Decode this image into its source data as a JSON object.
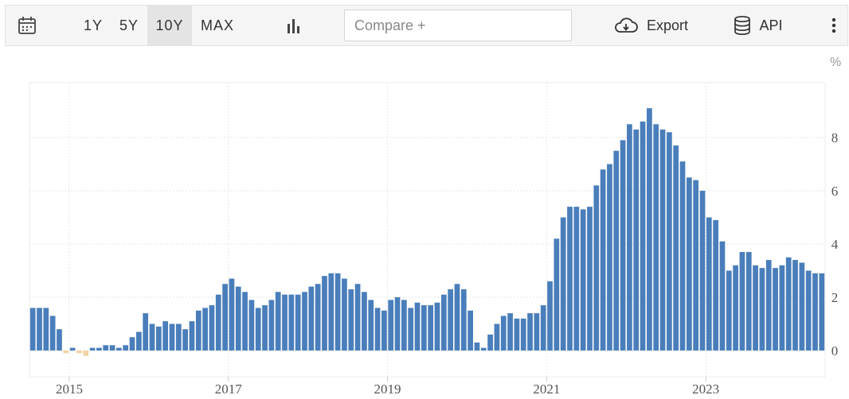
{
  "toolbar": {
    "calendar_icon": "calendar-icon",
    "ranges": [
      "1Y",
      "5Y",
      "10Y",
      "MAX"
    ],
    "active_range": "10Y",
    "chart_type_icon": "bar-chart-icon",
    "compare_placeholder": "Compare +",
    "export_label": "Export",
    "export_icon": "cloud-download-icon",
    "api_label": "API",
    "api_icon": "database-icon",
    "more_icon": "vertical-dots-icon"
  },
  "chart_data": {
    "type": "bar",
    "unit_label": "%",
    "x_tick_labels": [
      "2015",
      "2017",
      "2019",
      "2021",
      "2023"
    ],
    "y_tick_labels": [
      "0",
      "2",
      "4",
      "6",
      "8"
    ],
    "ylim": [
      -0.2,
      10
    ],
    "grid": true,
    "frequency": "monthly",
    "start": "2014-07",
    "end": "2024-06",
    "values": [
      1.6,
      1.6,
      1.6,
      1.3,
      0.8,
      -0.1,
      0.1,
      -0.1,
      -0.2,
      0.1,
      0.1,
      0.2,
      0.2,
      0.1,
      0.2,
      0.5,
      0.7,
      1.4,
      1.0,
      0.9,
      1.1,
      1.0,
      1.0,
      0.8,
      1.1,
      1.5,
      1.6,
      1.7,
      2.1,
      2.5,
      2.7,
      2.4,
      2.2,
      1.9,
      1.6,
      1.7,
      1.9,
      2.2,
      2.1,
      2.1,
      2.1,
      2.2,
      2.4,
      2.5,
      2.8,
      2.9,
      2.9,
      2.7,
      2.3,
      2.5,
      2.2,
      1.9,
      1.6,
      1.5,
      1.9,
      2.0,
      1.9,
      1.6,
      1.8,
      1.7,
      1.7,
      1.8,
      2.1,
      2.3,
      2.5,
      2.3,
      1.5,
      0.3,
      0.1,
      0.6,
      1.0,
      1.3,
      1.4,
      1.2,
      1.2,
      1.4,
      1.4,
      1.7,
      2.6,
      4.2,
      5.0,
      5.4,
      5.4,
      5.3,
      5.4,
      6.2,
      6.8,
      7.0,
      7.5,
      7.9,
      8.5,
      8.3,
      8.6,
      9.1,
      8.5,
      8.3,
      8.2,
      7.7,
      7.1,
      6.5,
      6.4,
      6.0,
      5.0,
      4.9,
      4.1,
      3.0,
      3.2,
      3.7,
      3.7,
      3.2,
      3.1,
      3.4,
      3.1,
      3.2,
      3.5,
      3.4,
      3.3,
      3.0,
      2.9,
      2.9
    ],
    "colors": {
      "positive": "#4a7ebb",
      "negative": "#f2d3a5",
      "grid": "#e6e6e6",
      "axis_text": "#555555"
    }
  }
}
